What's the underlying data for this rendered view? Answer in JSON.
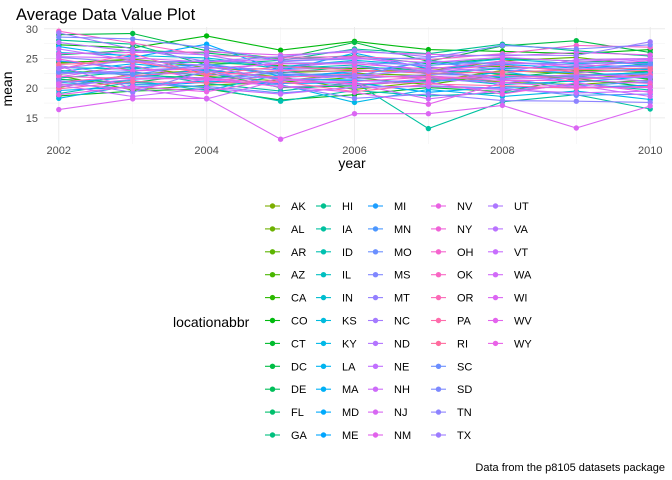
{
  "chart_data": {
    "type": "line",
    "title": "Average Data Value Plot",
    "xlabel": "year",
    "ylabel": "mean",
    "caption": "Data from the p8105 datasets package",
    "legend_title": "locationabbr",
    "legend_position": "bottom",
    "grid": true,
    "xlim": [
      2001.8,
      2010.2
    ],
    "ylim": [
      10.6,
      30.3
    ],
    "x_ticks": [
      2002,
      2004,
      2006,
      2008,
      2010
    ],
    "y_ticks": [
      15,
      20,
      25,
      30
    ],
    "x": [
      2002,
      2003,
      2004,
      2005,
      2006,
      2007,
      2008,
      2009,
      2010
    ],
    "series": [
      {
        "name": "AK",
        "color": "#7CAE00",
        "values": [
          20.1,
          22.4,
          23.0,
          21.9,
          19.8,
          21.1,
          23.0,
          22.4,
          21.7
        ]
      },
      {
        "name": "AL",
        "color": "#6DB100",
        "values": [
          22.3,
          23.6,
          22.0,
          21.2,
          22.5,
          22.1,
          21.0,
          20.6,
          21.4
        ]
      },
      {
        "name": "AR",
        "color": "#5CB400",
        "values": [
          24.2,
          24.9,
          23.5,
          22.6,
          23.0,
          22.9,
          24.6,
          25.2,
          23.8
        ]
      },
      {
        "name": "AZ",
        "color": "#48B600",
        "values": [
          22.1,
          19.7,
          20.5,
          21.0,
          21.8,
          20.6,
          22.4,
          21.6,
          22.3
        ]
      },
      {
        "name": "CA",
        "color": "#2CB900",
        "values": [
          24.4,
          24.6,
          24.3,
          23.8,
          23.3,
          23.4,
          23.7,
          23.0,
          22.8
        ]
      },
      {
        "name": "CO",
        "color": "#00BA0E",
        "values": [
          27.3,
          26.8,
          28.8,
          26.4,
          27.9,
          26.5,
          26.2,
          25.8,
          26.5
        ]
      },
      {
        "name": "CT",
        "color": "#00BC2E",
        "values": [
          18.7,
          19.5,
          19.9,
          18.0,
          18.9,
          20.1,
          19.4,
          21.6,
          20.2
        ]
      },
      {
        "name": "DC",
        "color": "#00BD45",
        "values": [
          29.0,
          29.2,
          26.3,
          25.0,
          27.7,
          24.5,
          27.1,
          28.0,
          26.0
        ]
      },
      {
        "name": "DE",
        "color": "#00BE59",
        "values": [
          21.5,
          20.9,
          22.6,
          20.1,
          20.4,
          21.4,
          21.8,
          22.9,
          21.5
        ]
      },
      {
        "name": "FL",
        "color": "#00BF6C",
        "values": [
          25.6,
          26.4,
          25.9,
          24.8,
          25.5,
          24.1,
          25.0,
          24.6,
          24.2
        ]
      },
      {
        "name": "GA",
        "color": "#00C07E",
        "values": [
          23.0,
          22.2,
          21.7,
          22.6,
          23.6,
          23.0,
          22.4,
          21.9,
          22.8
        ]
      },
      {
        "name": "HI",
        "color": "#00C08F",
        "values": [
          28.1,
          27.4,
          23.9,
          24.7,
          26.6,
          25.8,
          27.4,
          26.3,
          25.4
        ]
      },
      {
        "name": "IA",
        "color": "#00C1A0",
        "values": [
          21.7,
          22.8,
          20.8,
          19.5,
          21.0,
          13.2,
          17.7,
          18.9,
          16.5
        ]
      },
      {
        "name": "ID",
        "color": "#00C0B0",
        "values": [
          19.1,
          21.0,
          20.1,
          17.8,
          19.6,
          18.7,
          19.2,
          20.8,
          19.7
        ]
      },
      {
        "name": "IL",
        "color": "#00BFC0",
        "values": [
          23.5,
          23.2,
          24.8,
          23.3,
          23.9,
          22.4,
          23.3,
          23.7,
          23.1
        ]
      },
      {
        "name": "IN",
        "color": "#00BDCF",
        "values": [
          20.6,
          21.3,
          19.6,
          22.3,
          22.2,
          21.8,
          20.6,
          21.2,
          20.9
        ]
      },
      {
        "name": "KS",
        "color": "#00BBDD",
        "values": [
          26.0,
          25.5,
          25.1,
          23.6,
          24.7,
          23.8,
          24.9,
          24.1,
          24.4
        ]
      },
      {
        "name": "KY",
        "color": "#00B8E7",
        "values": [
          18.3,
          20.5,
          21.2,
          20.6,
          17.6,
          19.8,
          18.6,
          19.5,
          18.1
        ]
      },
      {
        "name": "LA",
        "color": "#00B4F0",
        "values": [
          22.8,
          24.1,
          22.9,
          21.7,
          22.9,
          22.6,
          21.9,
          22.2,
          22.6
        ]
      },
      {
        "name": "MA",
        "color": "#00B0F6",
        "values": [
          20.9,
          21.8,
          23.2,
          21.5,
          21.4,
          20.9,
          22.8,
          21.0,
          22.0
        ]
      },
      {
        "name": "MD",
        "color": "#00AAFC",
        "values": [
          27.0,
          25.2,
          27.4,
          22.9,
          25.9,
          23.3,
          24.0,
          23.4,
          24.0
        ]
      },
      {
        "name": "ME",
        "color": "#00A5FF",
        "values": [
          19.6,
          20.2,
          21.0,
          20.8,
          20.9,
          19.3,
          20.2,
          20.1,
          20.5
        ]
      },
      {
        "name": "MI",
        "color": "#1D9EFF",
        "values": [
          24.6,
          23.4,
          24.0,
          22.1,
          22.6,
          24.4,
          23.1,
          22.6,
          23.3
        ]
      },
      {
        "name": "MN",
        "color": "#4C97FF",
        "values": [
          22.6,
          22.6,
          22.3,
          21.6,
          21.2,
          21.2,
          21.4,
          20.4,
          21.1
        ]
      },
      {
        "name": "MO",
        "color": "#6A8FFF",
        "values": [
          21.2,
          20.7,
          20.3,
          19.2,
          20.1,
          20.4,
          20.0,
          18.8,
          19.0
        ]
      },
      {
        "name": "MS",
        "color": "#8087FF",
        "values": [
          25.2,
          24.3,
          24.6,
          24.2,
          24.3,
          23.9,
          24.3,
          23.9,
          23.6
        ]
      },
      {
        "name": "MT",
        "color": "#937FFF",
        "values": [
          23.8,
          22.0,
          21.4,
          22.8,
          21.6,
          22.3,
          22.1,
          22.0,
          22.4
        ]
      },
      {
        "name": "NC",
        "color": "#A47AFF",
        "values": [
          22.4,
          23.0,
          23.6,
          23.1,
          23.6,
          22.7,
          23.5,
          23.2,
          23.8
        ]
      },
      {
        "name": "ND",
        "color": "#B374FF",
        "values": [
          20.3,
          21.5,
          21.8,
          20.2,
          20.6,
          21.6,
          20.9,
          21.8,
          21.2
        ]
      },
      {
        "name": "NE",
        "color": "#C16FFF",
        "values": [
          26.6,
          24.7,
          22.7,
          24.4,
          25.2,
          23.6,
          22.6,
          24.8,
          25.0
        ]
      },
      {
        "name": "NH",
        "color": "#CD6BF9",
        "values": [
          23.7,
          20.0,
          18.2,
          21.4,
          20.7,
          18.2,
          19.6,
          20.5,
          18.6
        ]
      },
      {
        "name": "NJ",
        "color": "#D767F2",
        "values": [
          21.9,
          23.8,
          21.3,
          22.0,
          21.9,
          22.0,
          21.6,
          22.3,
          21.9
        ]
      },
      {
        "name": "NM",
        "color": "#E162EB",
        "values": [
          25.8,
          26.0,
          26.1,
          25.6,
          26.1,
          25.7,
          25.4,
          26.0,
          25.6
        ]
      },
      {
        "name": "NV",
        "color": "#E961E2",
        "values": [
          24.9,
          22.9,
          23.3,
          24.1,
          24.1,
          23.2,
          24.6,
          23.5,
          24.7
        ]
      },
      {
        "name": "NY",
        "color": "#F062D8",
        "values": [
          22.0,
          21.6,
          21.6,
          20.9,
          21.1,
          21.9,
          21.3,
          21.3,
          20.8
        ]
      },
      {
        "name": "OH",
        "color": "#F564CE",
        "values": [
          29.6,
          27.6,
          25.5,
          25.2,
          25.3,
          24.8,
          25.8,
          27.2,
          26.9
        ]
      },
      {
        "name": "OK",
        "color": "#F966C3",
        "values": [
          21.0,
          22.1,
          22.8,
          21.8,
          22.4,
          21.5,
          22.2,
          21.5,
          22.2
        ]
      },
      {
        "name": "OR",
        "color": "#FC69B7",
        "values": [
          23.2,
          25.8,
          22.1,
          23.0,
          22.8,
          22.9,
          23.9,
          22.7,
          23.0
        ]
      },
      {
        "name": "PA",
        "color": "#FF6BAB",
        "values": [
          19.9,
          21.1,
          20.9,
          21.1,
          19.4,
          20.7,
          20.4,
          20.0,
          20.3
        ]
      },
      {
        "name": "RI",
        "color": "#FF6C9E",
        "values": [
          24.0,
          24.5,
          22.4,
          23.6,
          23.1,
          22.5,
          22.7,
          23.1,
          23.4
        ]
      },
      {
        "name": "SC",
        "color": "#6B8EFF",
        "values": [
          22.7,
          22.3,
          24.1,
          22.4,
          22.0,
          24.6,
          24.1,
          24.3,
          24.1
        ]
      },
      {
        "name": "SD",
        "color": "#7C89FF",
        "values": [
          28.6,
          28.3,
          26.8,
          24.6,
          24.9,
          25.1,
          27.2,
          26.6,
          27.3
        ]
      },
      {
        "name": "TN",
        "color": "#8D83FF",
        "values": [
          21.3,
          19.3,
          22.9,
          20.5,
          18.3,
          19.0,
          17.9,
          17.8,
          17.6
        ]
      },
      {
        "name": "TX",
        "color": "#9D7CFF",
        "values": [
          29.3,
          26.6,
          24.5,
          25.3,
          26.4,
          25.3,
          25.6,
          25.5,
          27.8
        ]
      },
      {
        "name": "UT",
        "color": "#AC77FF",
        "values": [
          23.3,
          24.7,
          23.8,
          21.3,
          22.1,
          23.1,
          21.5,
          21.8,
          21.8
        ]
      },
      {
        "name": "VA",
        "color": "#BA72FF",
        "values": [
          27.7,
          26.2,
          25.6,
          23.4,
          24.5,
          22.8,
          24.2,
          23.9,
          24.9
        ]
      },
      {
        "name": "VT",
        "color": "#C76DFD",
        "values": [
          20.5,
          18.6,
          20.0,
          19.0,
          20.2,
          20.3,
          19.8,
          19.2,
          19.5
        ]
      },
      {
        "name": "WA",
        "color": "#D16AF8",
        "values": [
          25.3,
          25.1,
          24.4,
          24.9,
          25.0,
          24.3,
          25.2,
          24.5,
          25.0
        ]
      },
      {
        "name": "WI",
        "color": "#DB66F3",
        "values": [
          16.4,
          18.2,
          18.3,
          11.4,
          15.7,
          15.7,
          17.1,
          13.3,
          17.0
        ]
      },
      {
        "name": "WV",
        "color": "#E363ED",
        "values": [
          20.7,
          19.9,
          21.5,
          20.3,
          19.3,
          17.3,
          20.9,
          20.2,
          20.1
        ]
      },
      {
        "name": "WY",
        "color": "#E962E7",
        "values": [
          18.9,
          20.3,
          19.4,
          21.6,
          20.7,
          21.0,
          19.0,
          20.9,
          19.3
        ]
      }
    ]
  }
}
